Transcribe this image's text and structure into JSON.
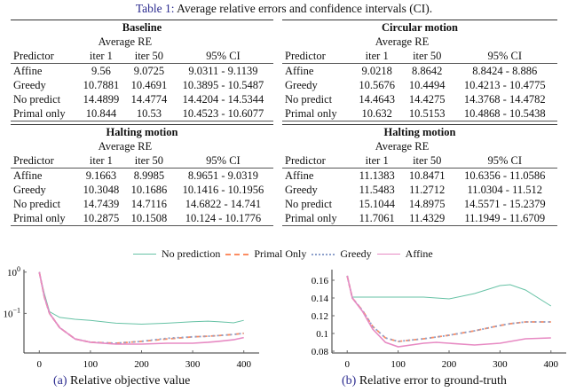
{
  "caption": {
    "label": "Table 1:",
    "text": "Average relative errors and confidence intervals (CI)."
  },
  "tables": [
    {
      "title": "Baseline",
      "subheader": "Average RE",
      "columns": [
        "Predictor",
        "iter 1",
        "iter 50",
        "95% CI"
      ],
      "rows": [
        [
          "Affine",
          "9.56",
          "9.0725",
          "9.0311 - 9.1139"
        ],
        [
          "Greedy",
          "10.7881",
          "10.4691",
          "10.3895 - 10.5487"
        ],
        [
          "No predict",
          "14.4899",
          "14.4774",
          "14.4204 - 14.5344"
        ],
        [
          "Primal only",
          "10.844",
          "10.53",
          "10.4523 - 10.6077"
        ]
      ]
    },
    {
      "title": "Circular motion",
      "subheader": "Average RE",
      "columns": [
        "Predictor",
        "iter 1",
        "iter 50",
        "95% CI"
      ],
      "rows": [
        [
          "Affine",
          "9.0218",
          "8.8642",
          "8.8424 - 8.886"
        ],
        [
          "Greedy",
          "10.5676",
          "10.4494",
          "10.4213 - 10.4775"
        ],
        [
          "No predict",
          "14.4643",
          "14.4275",
          "14.3768 - 14.4782"
        ],
        [
          "Primal only",
          "10.632",
          "10.5153",
          "10.4868 - 10.5438"
        ]
      ]
    },
    {
      "title": "Halting motion",
      "subheader": "Average RE",
      "columns": [
        "Predictor",
        "iter 1",
        "iter 50",
        "95% CI"
      ],
      "rows": [
        [
          "Affine",
          "9.1663",
          "8.9985",
          "8.9651 - 9.0319"
        ],
        [
          "Greedy",
          "10.3048",
          "10.1686",
          "10.1416 - 10.1956"
        ],
        [
          "No predict",
          "14.7439",
          "14.7116",
          "14.6822 - 14.741"
        ],
        [
          "Primal only",
          "10.2875",
          "10.1508",
          "10.124 - 10.1776"
        ]
      ]
    },
    {
      "title": "Halting motion",
      "subheader": "Average RE",
      "columns": [
        "Predictor",
        "iter 1",
        "iter 50",
        "95% CI"
      ],
      "rows": [
        [
          "Affine",
          "11.1383",
          "10.8471",
          "10.6356 - 11.0586"
        ],
        [
          "Greedy",
          "11.5483",
          "11.2712",
          "11.0304 - 11.512"
        ],
        [
          "No predict",
          "15.1044",
          "14.8975",
          "14.5571 - 15.2379"
        ],
        [
          "Primal only",
          "11.7061",
          "11.4329",
          "11.1949 - 11.6709"
        ]
      ]
    }
  ],
  "legend": [
    {
      "name": "No prediction",
      "color": "#66c2a5",
      "dash": ""
    },
    {
      "name": "Primal Only",
      "color": "#fc8d62",
      "dash": "5,4"
    },
    {
      "name": "Greedy",
      "color": "#8da0cb",
      "dash": "2,3"
    },
    {
      "name": "Affine",
      "color": "#e78ac3",
      "dash": ""
    }
  ],
  "chart_data": [
    {
      "type": "line",
      "label": "(a)",
      "title": "Relative objective value",
      "yscale": "log",
      "xlim": [
        -30,
        430
      ],
      "ylim": [
        0.011,
        1.15
      ],
      "xticks": [
        "0",
        "100",
        "200",
        "300",
        "400"
      ],
      "yticks": [
        {
          "v": 1,
          "label": "10^0"
        },
        {
          "v": 0.1,
          "label": "10^-1"
        }
      ],
      "x": [
        0,
        10,
        20,
        40,
        70,
        100,
        150,
        200,
        250,
        300,
        330,
        350,
        380,
        400
      ],
      "series": [
        {
          "name": "No prediction",
          "values": [
            1,
            0.3,
            0.11,
            0.08,
            0.072,
            0.068,
            0.058,
            0.055,
            0.058,
            0.063,
            0.065,
            0.063,
            0.059,
            0.068
          ]
        },
        {
          "name": "Primal Only",
          "values": [
            1,
            0.25,
            0.1,
            0.045,
            0.024,
            0.02,
            0.019,
            0.021,
            0.024,
            0.027,
            0.028,
            0.029,
            0.031,
            0.033
          ]
        },
        {
          "name": "Greedy",
          "values": [
            1,
            0.25,
            0.1,
            0.045,
            0.024,
            0.02,
            0.019,
            0.021,
            0.025,
            0.027,
            0.028,
            0.029,
            0.031,
            0.033
          ]
        },
        {
          "name": "Affine",
          "values": [
            1,
            0.25,
            0.1,
            0.045,
            0.024,
            0.02,
            0.018,
            0.018,
            0.019,
            0.019,
            0.02,
            0.021,
            0.023,
            0.026
          ]
        }
      ]
    },
    {
      "type": "line",
      "label": "(b)",
      "title": "Relative error to ground-truth",
      "yscale": "linear",
      "xlim": [
        -30,
        430
      ],
      "ylim": [
        0.078,
        0.172
      ],
      "xticks": [
        "0",
        "100",
        "200",
        "300",
        "400"
      ],
      "yticks": [
        {
          "v": 0.08,
          "label": "0.08"
        },
        {
          "v": 0.1,
          "label": "0.1"
        },
        {
          "v": 0.12,
          "label": "0.12"
        },
        {
          "v": 0.14,
          "label": "0.14"
        },
        {
          "v": 0.16,
          "label": "0.16"
        }
      ],
      "x": [
        0,
        10,
        30,
        50,
        75,
        100,
        150,
        175,
        200,
        250,
        300,
        320,
        350,
        400
      ],
      "series": [
        {
          "name": "No prediction",
          "values": [
            0.165,
            0.141,
            0.141,
            0.141,
            0.141,
            0.141,
            0.141,
            0.14,
            0.139,
            0.145,
            0.154,
            0.155,
            0.149,
            0.131
          ]
        },
        {
          "name": "Primal Only",
          "values": [
            0.165,
            0.14,
            0.126,
            0.108,
            0.095,
            0.091,
            0.094,
            0.096,
            0.098,
            0.103,
            0.109,
            0.111,
            0.113,
            0.113
          ]
        },
        {
          "name": "Greedy",
          "values": [
            0.165,
            0.14,
            0.126,
            0.108,
            0.095,
            0.091,
            0.094,
            0.096,
            0.098,
            0.103,
            0.109,
            0.111,
            0.113,
            0.113
          ]
        },
        {
          "name": "Affine",
          "values": [
            0.165,
            0.14,
            0.125,
            0.105,
            0.09,
            0.085,
            0.089,
            0.09,
            0.089,
            0.087,
            0.089,
            0.091,
            0.094,
            0.095
          ]
        }
      ]
    }
  ]
}
